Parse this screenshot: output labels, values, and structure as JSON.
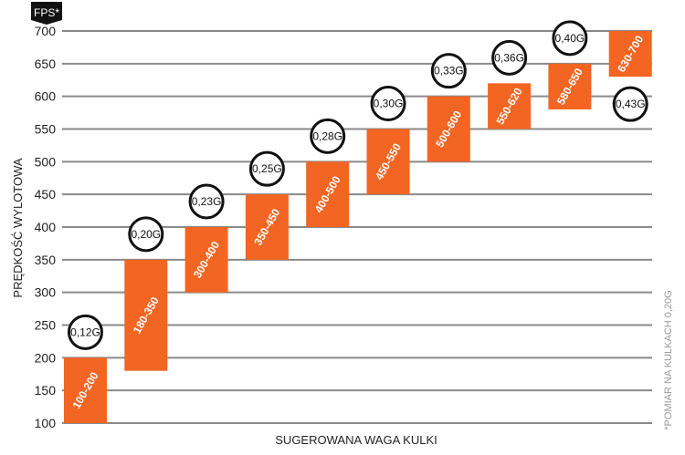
{
  "chart_data": {
    "type": "bar",
    "subtype": "floating-range",
    "unit_badge": "FPS*",
    "ylabel": "PRĘDKOŚĆ WYLOTOWA",
    "xlabel": "SUGEROWANA WAGA KULKI",
    "footnote": "*POMIAR NA KULKACH 0,20G",
    "ylim": [
      100,
      700
    ],
    "yticks": [
      100,
      150,
      200,
      250,
      300,
      350,
      400,
      450,
      500,
      550,
      600,
      650,
      700
    ],
    "grid": true,
    "bar_color": "#f26522",
    "categories": [
      "0,12G",
      "0,20G",
      "0,23G",
      "0,25G",
      "0,28G",
      "0,30G",
      "0,33G",
      "0,36G",
      "0,40G",
      "0,43G"
    ],
    "ranges": [
      [
        100,
        200
      ],
      [
        180,
        350
      ],
      [
        300,
        400
      ],
      [
        350,
        450
      ],
      [
        400,
        500
      ],
      [
        450,
        550
      ],
      [
        500,
        600
      ],
      [
        550,
        620
      ],
      [
        580,
        650
      ],
      [
        630,
        700
      ]
    ],
    "bar_labels": [
      "100-200",
      "180-350",
      "300-400",
      "350-450",
      "400-500",
      "450-550",
      "500-600",
      "550-620",
      "580-650",
      "630-700"
    ]
  }
}
